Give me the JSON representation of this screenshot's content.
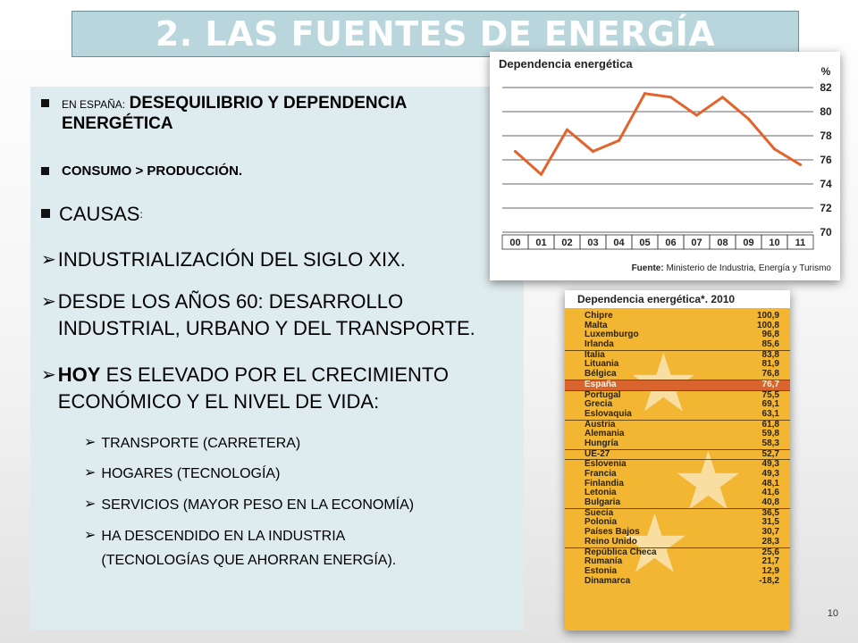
{
  "slide": {
    "title": "2. LAS FUENTES DE ENERGÍA",
    "page_number": "10"
  },
  "bullets": [
    {
      "lead": "EN ESPAÑA:",
      "text": "DESEQUILIBRIO Y DEPENDENCIA",
      "text2": "ENERGÉTICA"
    },
    {
      "text": "CONSUMO > PRODUCCIÓN."
    },
    {
      "text": "CAUSAS",
      "suffix": ":"
    },
    {
      "text": "INDUSTRIALIZACIÓN DEL SIGLO XIX."
    },
    {
      "text": "DESDE LOS AÑOS 60: DESARROLLO",
      "text2": "INDUSTRIAL, URBANO Y DEL TRANSPORTE."
    },
    {
      "bold": "HOY",
      "text": " ES ELEVADO POR EL CRECIMIENTO",
      "text2": "ECONÓMICO  Y EL NIVEL DE VIDA:"
    },
    {
      "text": "TRANSPORTE (CARRETERA)"
    },
    {
      "text": "HOGARES (TECNOLOGÍA)"
    },
    {
      "text": "SERVICIOS (MAYOR PESO EN LA ECONOMÍA)"
    },
    {
      "text": "HA DESCENDIDO EN LA INDUSTRIA",
      "text2": "(TECNOLOGÍAS QUE AHORRAN ENERGÍA)."
    }
  ],
  "chart_data": {
    "type": "line",
    "title": "Dependencia energética",
    "ylabel": "%",
    "categories": [
      "00",
      "01",
      "02",
      "03",
      "04",
      "05",
      "06",
      "07",
      "08",
      "09",
      "10",
      "11"
    ],
    "values": [
      76.7,
      74.8,
      78.5,
      76.7,
      77.6,
      81.5,
      81.2,
      79.7,
      81.2,
      79.4,
      76.9,
      75.6
    ],
    "ylim": [
      70,
      82
    ],
    "yticks": [
      82,
      80,
      78,
      76,
      74,
      72,
      70
    ],
    "grid": true,
    "source_label": "Fuente:",
    "source_text": "Ministerio de Industria, Energía y Turismo",
    "line_color": "#e2632c"
  },
  "ranking": {
    "title": "Dependencia energética*. 2010",
    "rows": [
      {
        "country": "Chipre",
        "value": "100,9"
      },
      {
        "country": "Malta",
        "value": "100,8"
      },
      {
        "country": "Luxemburgo",
        "value": "96,8"
      },
      {
        "country": "Irlanda",
        "value": "85,6"
      },
      {
        "country": "Italia",
        "value": "83,8"
      },
      {
        "country": "Lituania",
        "value": "81,9"
      },
      {
        "country": "Bélgica",
        "value": "76,8"
      },
      {
        "country": "España",
        "value": "76,7"
      },
      {
        "country": "Portugal",
        "value": "75,5"
      },
      {
        "country": "Grecia",
        "value": "69,1"
      },
      {
        "country": "Eslovaquia",
        "value": "63,1"
      },
      {
        "country": "Austria",
        "value": "61,8"
      },
      {
        "country": "Alemania",
        "value": "59,8"
      },
      {
        "country": "Hungría",
        "value": "58,3"
      },
      {
        "country": "UE-27",
        "value": "52,7"
      },
      {
        "country": "Eslovenia",
        "value": "49,3"
      },
      {
        "country": "Francia",
        "value": "49,3"
      },
      {
        "country": "Finlandia",
        "value": "48,1"
      },
      {
        "country": "Letonia",
        "value": "41,6"
      },
      {
        "country": "Bulgaria",
        "value": "40,8"
      },
      {
        "country": "Suecia",
        "value": "36,5"
      },
      {
        "country": "Polonia",
        "value": "31,5"
      },
      {
        "country": "Países Bajos",
        "value": "30,7"
      },
      {
        "country": "Reino Unido",
        "value": "28,3"
      },
      {
        "country": "República Checa",
        "value": "25,6"
      },
      {
        "country": "Rumanía",
        "value": "21,7"
      },
      {
        "country": "Estonia",
        "value": "12,9"
      },
      {
        "country": "Dinamarca",
        "value": "-18,2"
      }
    ],
    "highlight": "España",
    "colors": {
      "background": "#f2b632",
      "highlight": "#d9642d"
    }
  }
}
